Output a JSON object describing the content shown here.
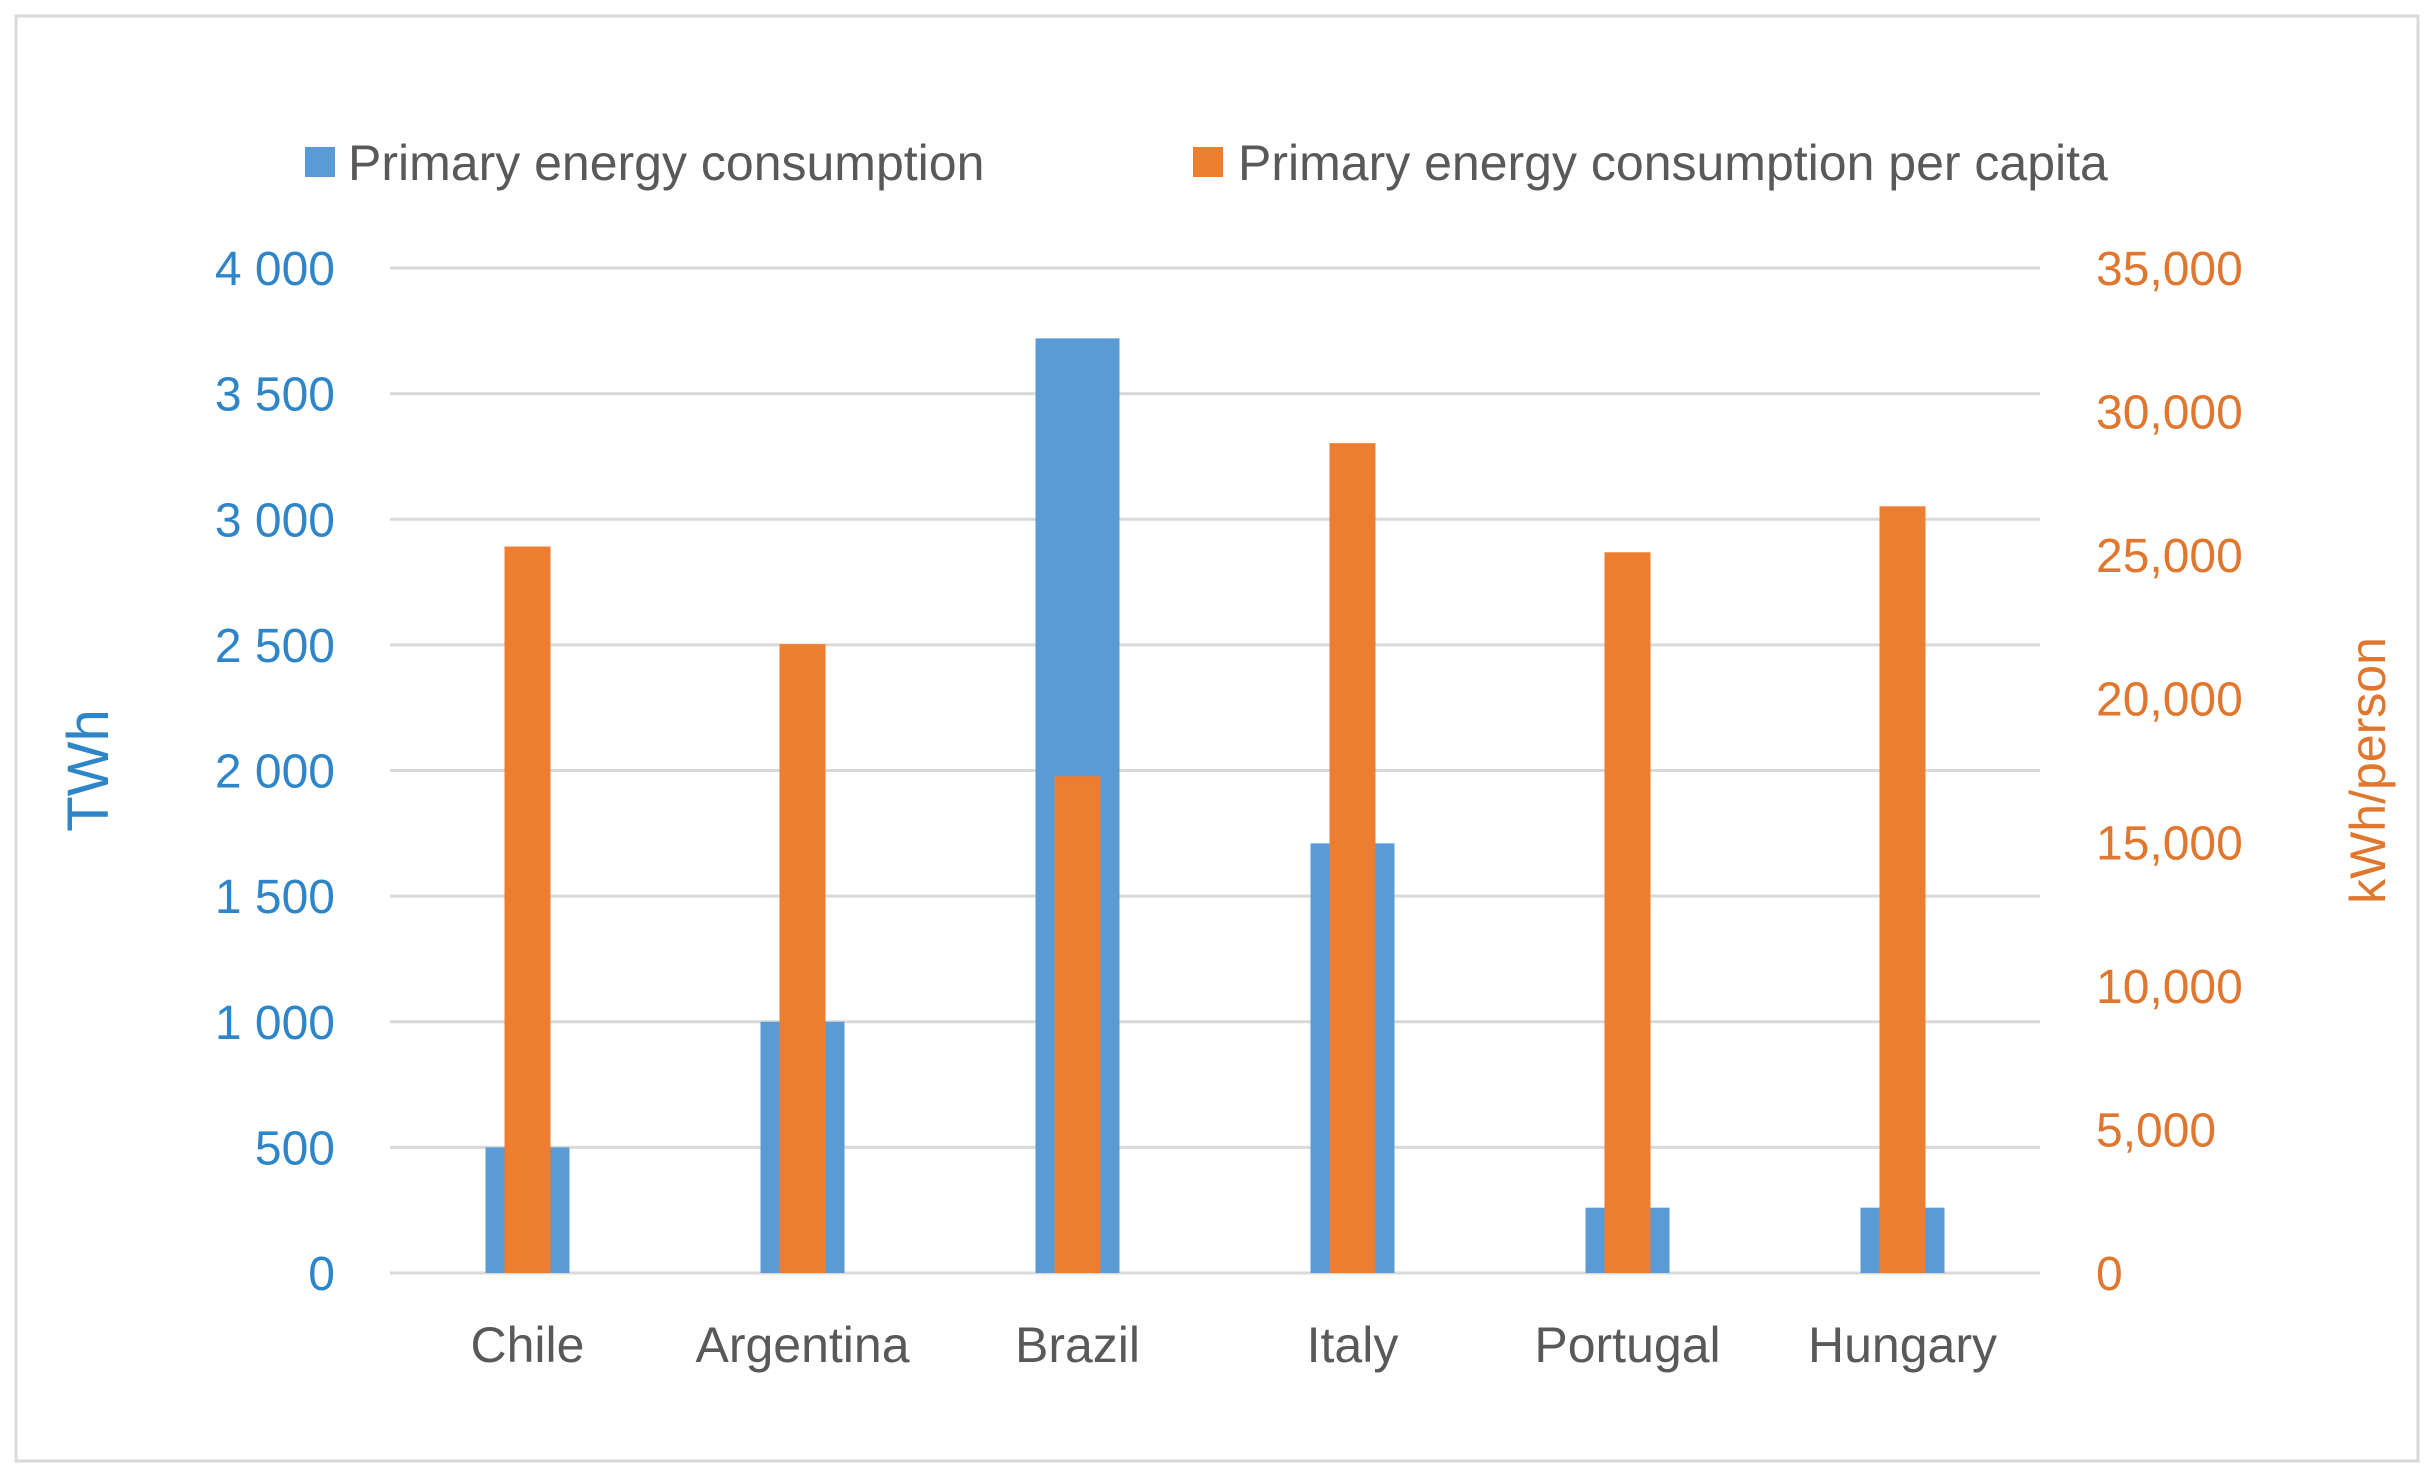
{
  "chart_data": {
    "type": "bar",
    "title": "",
    "categories": [
      "Chile",
      "Argentina",
      "Brazil",
      "Italy",
      "Portugal",
      "Hungary"
    ],
    "series": [
      {
        "name": "Primary energy consumption",
        "axis": "left",
        "color": "#5b9bd5",
        "values": [
          500,
          1000,
          3720,
          1710,
          260,
          260
        ]
      },
      {
        "name": "Primary energy consumption per capita",
        "axis": "right",
        "color": "#ed7d31",
        "values": [
          25300,
          21900,
          17300,
          28900,
          25100,
          26700
        ]
      }
    ],
    "y_left": {
      "label": "TWh",
      "color": "#2e86c9",
      "ylim": [
        0,
        4000
      ],
      "ticks": [
        0,
        500,
        1000,
        1500,
        2000,
        2500,
        3000,
        3500,
        4000
      ],
      "tick_labels": [
        "0",
        "500",
        "1 000",
        "1 500",
        "2 000",
        "2 500",
        "3 000",
        "3 500",
        "4 000"
      ]
    },
    "y_right": {
      "label": "kWh/person",
      "color": "#e0772f",
      "ylim": [
        0,
        35000
      ],
      "ticks": [
        0,
        5000,
        10000,
        15000,
        20000,
        25000,
        30000,
        35000
      ],
      "tick_labels": [
        "0",
        "5,000",
        "10,000",
        "15,000",
        "20,000",
        "25,000",
        "30,000",
        "35,000"
      ]
    },
    "grid": true,
    "legend_position": "top"
  }
}
